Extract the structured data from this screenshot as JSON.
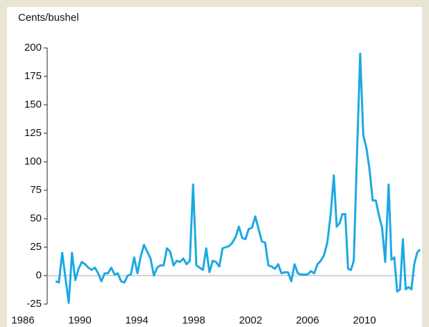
{
  "chart_data": {
    "type": "line",
    "title": "Cents/bushel",
    "x": [
      1988.3,
      1988.53,
      1988.76,
      1988.99,
      1989.22,
      1989.45,
      1989.68,
      1989.91,
      1990.14,
      1990.37,
      1990.6,
      1990.83,
      1991.06,
      1991.29,
      1991.52,
      1991.75,
      1991.98,
      1992.21,
      1992.44,
      1992.67,
      1992.9,
      1993.13,
      1993.36,
      1993.59,
      1993.82,
      1994.05,
      1994.28,
      1994.51,
      1994.74,
      1994.97,
      1995.2,
      1995.43,
      1995.66,
      1995.89,
      1996.12,
      1996.35,
      1996.58,
      1996.81,
      1997.04,
      1997.27,
      1997.5,
      1997.73,
      1997.96,
      1998.19,
      1998.42,
      1998.65,
      1998.88,
      1999.11,
      1999.34,
      1999.57,
      1999.8,
      2000.03,
      2000.26,
      2000.49,
      2000.72,
      2000.95,
      2001.18,
      2001.41,
      2001.64,
      2001.87,
      2002.1,
      2002.33,
      2002.56,
      2002.79,
      2003.02,
      2003.25,
      2003.48,
      2003.71,
      2003.94,
      2004.17,
      2004.4,
      2004.63,
      2004.86,
      2005.09,
      2005.32,
      2005.55,
      2005.78,
      2006.01,
      2006.24,
      2006.47,
      2006.7,
      2006.93,
      2007.16,
      2007.39,
      2007.62,
      2007.85,
      2008.05,
      2008.25,
      2008.45,
      2008.65,
      2008.85,
      2009.05,
      2009.25,
      2009.45,
      2009.7,
      2009.92,
      2010.14,
      2010.36,
      2010.58,
      2010.8,
      2011.02,
      2011.24,
      2011.46,
      2011.7,
      2011.9,
      2012.1,
      2012.3,
      2012.5,
      2012.7,
      2012.9,
      2013.1,
      2013.3,
      2013.5,
      2013.7,
      2013.9
    ],
    "values": [
      -5,
      -6,
      20,
      -2,
      -24,
      20,
      -4,
      6,
      12,
      10,
      7,
      5,
      7,
      2,
      -5,
      2,
      2,
      7,
      1,
      2,
      -5,
      -6,
      0,
      1,
      16,
      2,
      17,
      27,
      21,
      15,
      0,
      7,
      9,
      9,
      24,
      21,
      9,
      13,
      12,
      15,
      10,
      13,
      80,
      9,
      7,
      5,
      24,
      3,
      13,
      12,
      8,
      24,
      25,
      26,
      29,
      34,
      43,
      33,
      32,
      41,
      42,
      52,
      41,
      30,
      29,
      9,
      8,
      6,
      10,
      2,
      3,
      3,
      -5,
      10,
      2,
      1,
      1,
      1,
      4,
      2,
      10,
      13,
      18,
      29,
      53,
      88,
      43,
      46,
      54,
      54,
      6,
      5,
      13,
      96,
      195,
      123,
      112,
      93,
      66,
      66,
      53,
      42,
      12,
      80,
      14,
      16,
      -14,
      -12,
      32,
      -12,
      -10,
      -12,
      10,
      20,
      23
    ],
    "color": "#1ba9e1",
    "xlim": [
      1986,
      2014
    ],
    "xticks": [
      1986,
      1990,
      1994,
      1998,
      2002,
      2006,
      2010
    ],
    "ylim": [
      -25,
      200
    ],
    "yticks": [
      -25,
      0,
      25,
      50,
      75,
      100,
      125,
      150,
      175,
      200
    ],
    "zero_line": true
  }
}
